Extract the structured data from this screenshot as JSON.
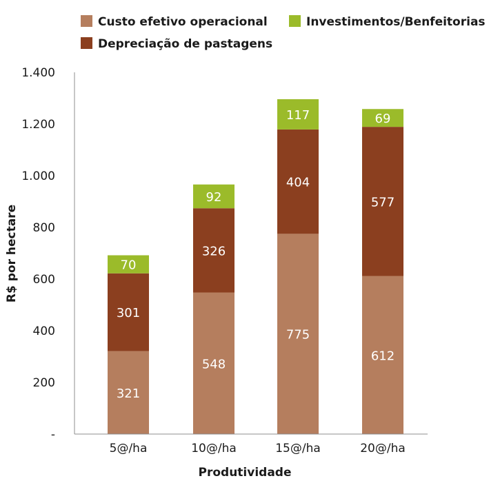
{
  "chart_data": {
    "type": "bar",
    "stacked": true,
    "categories": [
      "5@/ha",
      "10@/ha",
      "15@/ha",
      "20@/ha"
    ],
    "series": [
      {
        "name": "Custo efetivo operacional",
        "values": [
          321,
          548,
          775,
          612
        ],
        "color": "#b57e5e"
      },
      {
        "name": "Depreciação de pastagens",
        "values": [
          301,
          326,
          404,
          577
        ],
        "color": "#8b3f1f"
      },
      {
        "name": "Investimentos/Benfeitorias",
        "values": [
          70,
          92,
          117,
          69
        ],
        "color": "#9bbb2a"
      }
    ],
    "xlabel": "Produtividade",
    "ylabel": "R$ por hectare",
    "ylim": [
      0,
      1400
    ],
    "yticks": [
      "-",
      "200",
      "400",
      "600",
      "800",
      "1.000",
      "1.200",
      "1.400"
    ],
    "legend_position": "top",
    "grid": false
  }
}
